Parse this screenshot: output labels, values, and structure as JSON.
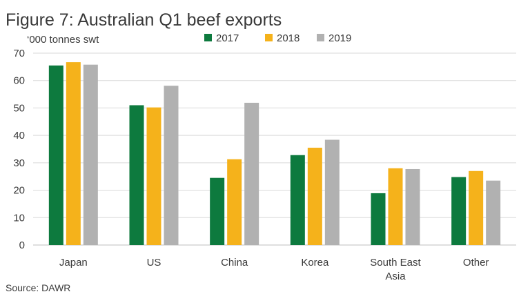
{
  "chart_data": {
    "type": "bar",
    "title": "Figure 7: Australian Q1 beef exports",
    "ylabel": "‘000 tonnes swt",
    "xlabel": "",
    "source": "Source: DAWR",
    "ylim": [
      0,
      70
    ],
    "yticks": [
      0,
      10,
      20,
      30,
      40,
      50,
      60,
      70
    ],
    "grid": true,
    "legend_position": "top",
    "categories": [
      "Japan",
      "US",
      "China",
      "Korea",
      "South East Asia",
      "Other"
    ],
    "category_lines": [
      [
        "Japan"
      ],
      [
        "US"
      ],
      [
        "China"
      ],
      [
        "Korea"
      ],
      [
        "South East",
        "Asia"
      ],
      [
        "Other"
      ]
    ],
    "series": [
      {
        "name": "2017",
        "color": "#0d7a3e",
        "values": [
          65.5,
          51,
          24.5,
          32.8,
          18.9,
          24.8
        ]
      },
      {
        "name": "2018",
        "color": "#f5b21b",
        "values": [
          66.7,
          50.2,
          31.3,
          35.5,
          28,
          27
        ]
      },
      {
        "name": "2019",
        "color": "#b1b1b1",
        "values": [
          65.8,
          58.1,
          51.9,
          38.4,
          27.7,
          23.5
        ]
      }
    ]
  }
}
